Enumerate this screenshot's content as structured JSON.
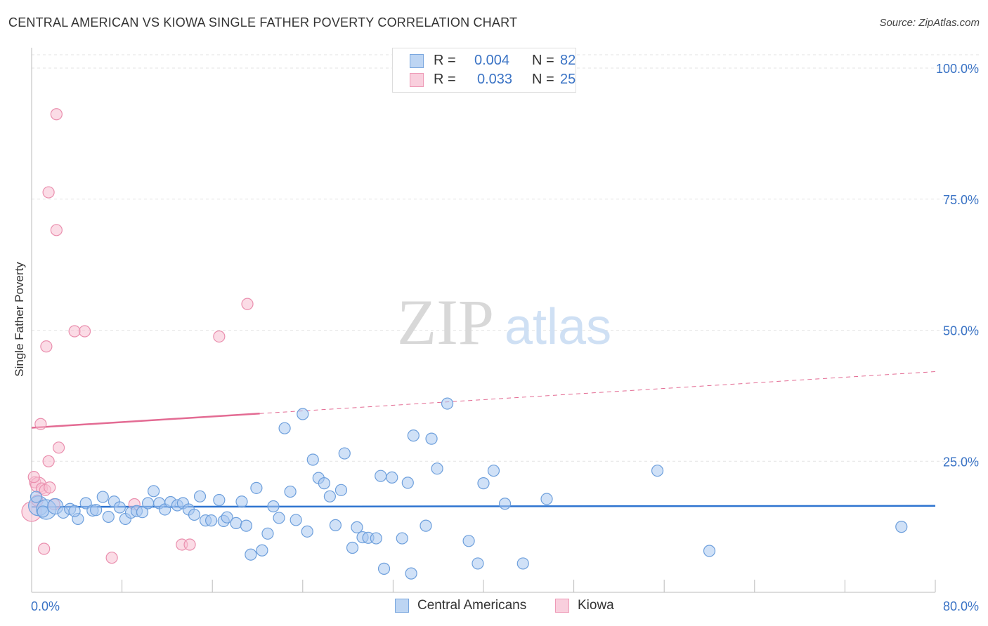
{
  "title": "CENTRAL AMERICAN VS KIOWA SINGLE FATHER POVERTY CORRELATION CHART",
  "source": "Source: ZipAtlas.com",
  "watermark": {
    "zip": "ZIP",
    "atlas": "atlas"
  },
  "colors": {
    "blue_fill": "#a9c8f0",
    "blue_stroke": "#6d9fdc",
    "blue_line": "#2e74d0",
    "pink_fill": "#f7c0d2",
    "pink_stroke": "#ea8fae",
    "pink_line": "#e36b93",
    "tick_text": "#3a73c5",
    "grid": "#e3e3e3"
  },
  "legend": {
    "rows": [
      {
        "r_label": "R =",
        "r_value": "0.004",
        "n_label": "N =",
        "n_value": "82"
      },
      {
        "r_label": "R =",
        "r_value": "0.033",
        "n_label": "N =",
        "n_value": "25"
      }
    ],
    "series_names": [
      "Central Americans",
      "Kiowa"
    ]
  },
  "chart_data": {
    "type": "scatter",
    "title": "CENTRAL AMERICAN VS KIOWA SINGLE FATHER POVERTY CORRELATION CHART",
    "xlabel": "",
    "ylabel": "Single Father Poverty",
    "xlim": [
      0,
      80
    ],
    "ylim": [
      0,
      100
    ],
    "x_tick_labels": [
      "0.0%",
      "80.0%"
    ],
    "y_ticks": [
      25,
      50,
      75,
      100
    ],
    "y_tick_labels": [
      "25.0%",
      "50.0%",
      "75.0%",
      "100.0%"
    ],
    "legend_position": "top-center",
    "series": [
      {
        "name": "Central Americans",
        "r": 0.004,
        "n": 82,
        "trend": {
          "x": [
            0,
            80
          ],
          "y": [
            16.3,
            16.5
          ],
          "dashed_from": null
        },
        "points": [
          {
            "x": 0.6,
            "y": 16.5,
            "s": 3
          },
          {
            "x": 1.3,
            "y": 15.8,
            "s": 3
          },
          {
            "x": 2.1,
            "y": 16.4,
            "s": 2
          },
          {
            "x": 0.4,
            "y": 18.2,
            "s": 1
          },
          {
            "x": 2.8,
            "y": 15.2,
            "s": 1
          },
          {
            "x": 3.4,
            "y": 15.9,
            "s": 1
          },
          {
            "x": 4.1,
            "y": 14.0,
            "s": 1
          },
          {
            "x": 4.8,
            "y": 17.0,
            "s": 1
          },
          {
            "x": 5.4,
            "y": 15.6,
            "s": 1
          },
          {
            "x": 5.7,
            "y": 15.7,
            "s": 1
          },
          {
            "x": 6.3,
            "y": 18.2,
            "s": 1
          },
          {
            "x": 6.8,
            "y": 14.4,
            "s": 1
          },
          {
            "x": 7.3,
            "y": 17.3,
            "s": 1
          },
          {
            "x": 7.8,
            "y": 16.2,
            "s": 1
          },
          {
            "x": 8.3,
            "y": 14.0,
            "s": 1
          },
          {
            "x": 8.8,
            "y": 15.2,
            "s": 1
          },
          {
            "x": 9.3,
            "y": 15.5,
            "s": 1
          },
          {
            "x": 9.8,
            "y": 15.3,
            "s": 1
          },
          {
            "x": 10.3,
            "y": 17.0,
            "s": 1
          },
          {
            "x": 10.8,
            "y": 19.3,
            "s": 1
          },
          {
            "x": 11.3,
            "y": 17.0,
            "s": 1
          },
          {
            "x": 11.8,
            "y": 15.8,
            "s": 1
          },
          {
            "x": 12.3,
            "y": 17.2,
            "s": 1
          },
          {
            "x": 12.9,
            "y": 16.6,
            "s": 1
          },
          {
            "x": 13.4,
            "y": 17.0,
            "s": 1
          },
          {
            "x": 13.9,
            "y": 15.8,
            "s": 1
          },
          {
            "x": 14.4,
            "y": 14.8,
            "s": 1
          },
          {
            "x": 14.9,
            "y": 18.3,
            "s": 1
          },
          {
            "x": 15.4,
            "y": 13.7,
            "s": 1
          },
          {
            "x": 15.9,
            "y": 13.7,
            "s": 1
          },
          {
            "x": 16.6,
            "y": 17.6,
            "s": 1
          },
          {
            "x": 17.0,
            "y": 13.6,
            "s": 1
          },
          {
            "x": 17.3,
            "y": 14.3,
            "s": 1
          },
          {
            "x": 18.1,
            "y": 13.2,
            "s": 1
          },
          {
            "x": 18.6,
            "y": 17.3,
            "s": 1
          },
          {
            "x": 19.0,
            "y": 12.7,
            "s": 1
          },
          {
            "x": 19.4,
            "y": 7.2,
            "s": 1
          },
          {
            "x": 19.9,
            "y": 19.9,
            "s": 1
          },
          {
            "x": 20.4,
            "y": 8.0,
            "s": 1
          },
          {
            "x": 20.9,
            "y": 11.2,
            "s": 1
          },
          {
            "x": 21.4,
            "y": 16.4,
            "s": 1
          },
          {
            "x": 21.9,
            "y": 14.2,
            "s": 1
          },
          {
            "x": 22.4,
            "y": 31.3,
            "s": 1
          },
          {
            "x": 22.9,
            "y": 19.2,
            "s": 1
          },
          {
            "x": 23.4,
            "y": 13.8,
            "s": 1
          },
          {
            "x": 24.0,
            "y": 34.0,
            "s": 1
          },
          {
            "x": 24.4,
            "y": 11.6,
            "s": 1
          },
          {
            "x": 24.9,
            "y": 25.3,
            "s": 1
          },
          {
            "x": 25.4,
            "y": 21.8,
            "s": 1
          },
          {
            "x": 25.9,
            "y": 20.8,
            "s": 1
          },
          {
            "x": 26.4,
            "y": 18.3,
            "s": 1
          },
          {
            "x": 26.9,
            "y": 12.8,
            "s": 1
          },
          {
            "x": 27.4,
            "y": 19.5,
            "s": 1
          },
          {
            "x": 27.7,
            "y": 26.5,
            "s": 1
          },
          {
            "x": 28.4,
            "y": 8.5,
            "s": 1
          },
          {
            "x": 28.8,
            "y": 12.4,
            "s": 1
          },
          {
            "x": 29.3,
            "y": 10.5,
            "s": 1
          },
          {
            "x": 29.8,
            "y": 10.4,
            "s": 1
          },
          {
            "x": 30.5,
            "y": 10.3,
            "s": 1
          },
          {
            "x": 30.9,
            "y": 22.2,
            "s": 1
          },
          {
            "x": 31.2,
            "y": 4.5,
            "s": 1
          },
          {
            "x": 31.9,
            "y": 21.9,
            "s": 1
          },
          {
            "x": 32.8,
            "y": 10.3,
            "s": 1
          },
          {
            "x": 33.3,
            "y": 20.9,
            "s": 1
          },
          {
            "x": 33.6,
            "y": 3.6,
            "s": 1
          },
          {
            "x": 33.8,
            "y": 29.9,
            "s": 1
          },
          {
            "x": 34.9,
            "y": 12.7,
            "s": 1
          },
          {
            "x": 35.4,
            "y": 29.3,
            "s": 1
          },
          {
            "x": 35.9,
            "y": 23.6,
            "s": 1
          },
          {
            "x": 36.8,
            "y": 36.0,
            "s": 1
          },
          {
            "x": 38.7,
            "y": 9.8,
            "s": 1
          },
          {
            "x": 39.5,
            "y": 5.5,
            "s": 1
          },
          {
            "x": 40.0,
            "y": 20.8,
            "s": 1
          },
          {
            "x": 40.9,
            "y": 23.2,
            "s": 1
          },
          {
            "x": 41.9,
            "y": 16.9,
            "s": 1
          },
          {
            "x": 43.5,
            "y": 5.5,
            "s": 1
          },
          {
            "x": 45.6,
            "y": 17.8,
            "s": 1
          },
          {
            "x": 55.4,
            "y": 23.2,
            "s": 1
          },
          {
            "x": 60.0,
            "y": 7.9,
            "s": 1
          },
          {
            "x": 77.0,
            "y": 12.5,
            "s": 1
          },
          {
            "x": 3.8,
            "y": 15.5,
            "s": 1
          },
          {
            "x": 1.0,
            "y": 15.4,
            "s": 1
          }
        ]
      },
      {
        "name": "Kiowa",
        "r": 0.033,
        "n": 25,
        "trend": {
          "x": [
            0,
            80
          ],
          "y": [
            31.4,
            42.1
          ],
          "dashed_from": 20.2
        },
        "points": [
          {
            "x": 0.0,
            "y": 15.4,
            "s": 3
          },
          {
            "x": 0.3,
            "y": 21.0,
            "s": 1
          },
          {
            "x": 0.6,
            "y": 20.5,
            "s": 2
          },
          {
            "x": 0.9,
            "y": 19.8,
            "s": 1
          },
          {
            "x": 1.2,
            "y": 19.5,
            "s": 1
          },
          {
            "x": 0.8,
            "y": 32.1,
            "s": 1
          },
          {
            "x": 1.1,
            "y": 8.3,
            "s": 1
          },
          {
            "x": 1.3,
            "y": 46.9,
            "s": 1
          },
          {
            "x": 1.5,
            "y": 76.3,
            "s": 1
          },
          {
            "x": 1.5,
            "y": 25.0,
            "s": 1
          },
          {
            "x": 1.6,
            "y": 20.0,
            "s": 1
          },
          {
            "x": 2.2,
            "y": 91.2,
            "s": 1
          },
          {
            "x": 2.2,
            "y": 69.1,
            "s": 1
          },
          {
            "x": 2.4,
            "y": 27.6,
            "s": 1
          },
          {
            "x": 3.8,
            "y": 49.8,
            "s": 1
          },
          {
            "x": 4.7,
            "y": 49.8,
            "s": 1
          },
          {
            "x": 7.1,
            "y": 6.6,
            "s": 1
          },
          {
            "x": 9.1,
            "y": 16.8,
            "s": 1
          },
          {
            "x": 13.3,
            "y": 9.1,
            "s": 1
          },
          {
            "x": 14.0,
            "y": 9.1,
            "s": 1
          },
          {
            "x": 16.6,
            "y": 48.8,
            "s": 1
          },
          {
            "x": 19.1,
            "y": 55.0,
            "s": 1
          },
          {
            "x": 0.5,
            "y": 17.5,
            "s": 1
          },
          {
            "x": 2.0,
            "y": 16.8,
            "s": 1
          },
          {
            "x": 0.2,
            "y": 22.0,
            "s": 1
          }
        ]
      }
    ]
  }
}
